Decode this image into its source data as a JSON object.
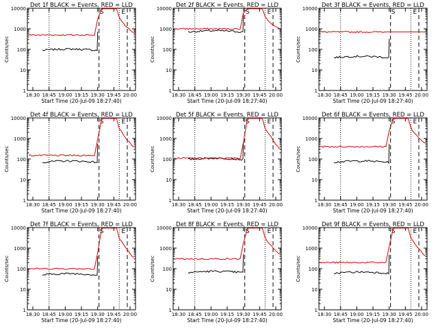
{
  "chart_data": {
    "type": "line",
    "y_scale": "log",
    "ylim": [
      1,
      10000
    ],
    "y_ticks": [
      "1",
      "10",
      "100",
      "1000",
      "10000"
    ],
    "ylabel": "Counts/sec",
    "xlabel": "Start Time (20-Jul-09 18:27:40)",
    "x_ticks": [
      "18:30",
      "18:45",
      "19:00",
      "19:15",
      "19:30",
      "19:45",
      "20:00"
    ],
    "series_colors": {
      "events": "#000000",
      "lld": "#d40000"
    },
    "panels": [
      {
        "title": "Det 1f BLACK = Events, RED = LLD",
        "markers": [
          "S",
          "E"
        ],
        "events_base": 90,
        "lld_base": 500,
        "flare": true
      },
      {
        "title": "Det 2f BLACK = Events, RED = LLD",
        "markers": [
          "S",
          "E"
        ],
        "events_base": 700,
        "lld_base": 1000,
        "flare": true
      },
      {
        "title": "Det 3f BLACK = Events, RED = LLD",
        "markers": [
          "S",
          "E"
        ],
        "events_base": 40,
        "lld_base": 700,
        "flare": false
      },
      {
        "title": "Det 4f BLACK = Events, RED = LLD",
        "markers": [
          "S",
          "E"
        ],
        "events_base": 70,
        "lld_base": 150,
        "flare": true
      },
      {
        "title": "Det 5f BLACK = Events, RED = LLD",
        "markers": [
          "S",
          "E"
        ],
        "events_base": 95,
        "lld_base": 110,
        "flare": true
      },
      {
        "title": "Det 6f BLACK = Events, RED = LLD",
        "markers": [
          "S",
          "E"
        ],
        "events_base": 70,
        "lld_base": 400,
        "flare": true
      },
      {
        "title": "Det 7f BLACK = Events, RED = LLD",
        "markers": [
          "S",
          "E"
        ],
        "events_base": 50,
        "lld_base": 100,
        "flare": true
      },
      {
        "title": "Det 8f BLACK = Events, RED = LLD",
        "markers": [
          "S",
          "E"
        ],
        "events_base": 65,
        "lld_base": 300,
        "flare": true
      },
      {
        "title": "Det 9f BLACK = Events, RED = LLD",
        "markers": [
          "S",
          "E"
        ],
        "events_base": 60,
        "lld_base": 200,
        "flare": true
      }
    ]
  }
}
